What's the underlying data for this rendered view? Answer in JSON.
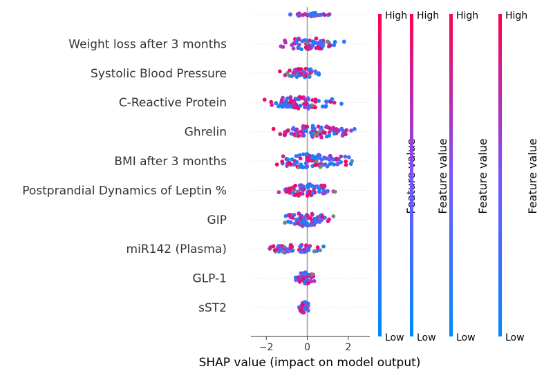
{
  "chart_data": {
    "type": "scatter",
    "subtype": "shap-beeswarm",
    "xlabel": "SHAP value (impact on model output)",
    "xlim": [
      -2.75,
      3.05
    ],
    "xticks": [
      -2,
      0,
      2
    ],
    "xtick_labels": [
      "−2",
      "0",
      "2"
    ],
    "grid": "dotted horizontal row lines",
    "features": [
      {
        "name": "",
        "x_range": [
          -1.4,
          1.6
        ],
        "spread": 0.12,
        "count": 36
      },
      {
        "name": "Weight loss after 3 months",
        "x_range": [
          -1.9,
          2.0
        ],
        "spread": 0.42,
        "count": 62
      },
      {
        "name": "Systolic Blood Pressure",
        "x_range": [
          -1.4,
          1.0
        ],
        "spread": 0.33,
        "count": 50
      },
      {
        "name": "C-Reactive Protein",
        "x_range": [
          -2.4,
          2.1
        ],
        "spread": 0.45,
        "count": 80
      },
      {
        "name": "Ghrelin",
        "x_range": [
          -2.3,
          2.7
        ],
        "spread": 0.45,
        "count": 84
      },
      {
        "name": "BMI after 3 months",
        "x_range": [
          -2.5,
          2.8
        ],
        "spread": 0.5,
        "count": 95
      },
      {
        "name": "Postprandial Dynamics of Leptin %",
        "x_range": [
          -1.9,
          1.9
        ],
        "spread": 0.43,
        "count": 76
      },
      {
        "name": "GIP",
        "x_range": [
          -1.8,
          1.6
        ],
        "spread": 0.48,
        "count": 74
      },
      {
        "name": "miR142 (Plasma)",
        "x_range": [
          -2.6,
          1.3
        ],
        "spread": 0.3,
        "count": 58
      },
      {
        "name": "GLP-1",
        "x_range": [
          -0.8,
          0.6
        ],
        "spread": 0.42,
        "count": 55
      },
      {
        "name": "sST2",
        "x_range": [
          -0.5,
          0.2
        ],
        "spread": 0.42,
        "count": 42
      }
    ],
    "colors": {
      "low": "#008bfb",
      "mid": "#7c52ff",
      "high": "#ff0052",
      "missing": "#808080",
      "zero_line": "#999999",
      "grid": "#cccccc"
    },
    "colorbars": [
      {
        "high_label": "High",
        "low_label": "Low",
        "title": "Feature value"
      },
      {
        "high_label": "High",
        "low_label": "Low",
        "title": "Feature value"
      },
      {
        "high_label": "High",
        "low_label": "Low",
        "title": "Feature value"
      },
      {
        "high_label": "High",
        "low_label": "Low",
        "title": "Feature value"
      }
    ]
  }
}
